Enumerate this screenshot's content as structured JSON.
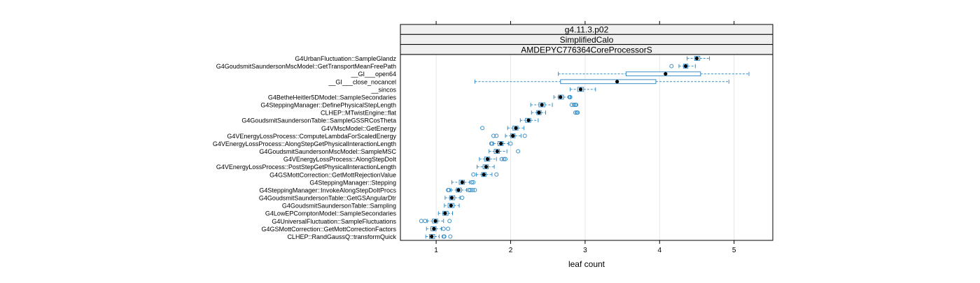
{
  "chart_data": {
    "type": "boxplot",
    "strips": [
      "g4.11.3.p02",
      "SimplifiedCalo",
      "AMDEPYC776364CoreProcessorS"
    ],
    "xlabel": "leaf count",
    "xlim": [
      0.52,
      5.52
    ],
    "xticks": [
      1,
      2,
      3,
      4,
      5
    ],
    "grid": true,
    "colors": {
      "box": "#0080ff",
      "box_stroke": "#3a8fc7",
      "median": "#000000",
      "grid": "#e6e6e6",
      "strip_bg": "#f0f0f0",
      "frame": "#000000"
    },
    "series": [
      {
        "name": "G4UrbanFluctuation::SampleGlandz",
        "min": 4.37,
        "q1": 4.47,
        "median": 4.5,
        "q3": 4.54,
        "max": 4.67,
        "outliers": []
      },
      {
        "name": "G4GoudsmitSaundersonMscModel::GetTransportMeanFreePath",
        "min": 4.26,
        "q1": 4.32,
        "median": 4.35,
        "q3": 4.38,
        "max": 4.48,
        "outliers": [
          4.16
        ]
      },
      {
        "name": "__GI___open64",
        "min": 2.64,
        "q1": 3.55,
        "median": 4.08,
        "q3": 4.55,
        "max": 5.2,
        "outliers": []
      },
      {
        "name": "__GI___close_nocancel",
        "min": 1.52,
        "q1": 2.67,
        "median": 3.43,
        "q3": 3.95,
        "max": 4.93,
        "outliers": []
      },
      {
        "name": "__sincos",
        "min": 2.8,
        "q1": 2.9,
        "median": 2.94,
        "q3": 2.98,
        "max": 3.14,
        "outliers": []
      },
      {
        "name": "G4BetheHeitler5DModel::SampleSecondaries",
        "min": 2.58,
        "q1": 2.64,
        "median": 2.67,
        "q3": 2.71,
        "max": 2.8,
        "outliers": [
          2.79,
          2.8
        ]
      },
      {
        "name": "G4SteppingManager::DefinePhysicalStepLength",
        "min": 2.27,
        "q1": 2.38,
        "median": 2.42,
        "q3": 2.46,
        "max": 2.56,
        "outliers": [
          2.82,
          2.85,
          2.87,
          2.88
        ]
      },
      {
        "name": "CLHEP::MTwistEngine::flat",
        "min": 2.28,
        "q1": 2.35,
        "median": 2.38,
        "q3": 2.41,
        "max": 2.47,
        "outliers": [
          2.87,
          2.89,
          2.9
        ]
      },
      {
        "name": "G4GoudsmitSaundersonTable::SampleGSSRCosTheta",
        "min": 2.13,
        "q1": 2.2,
        "median": 2.24,
        "q3": 2.27,
        "max": 2.37,
        "outliers": []
      },
      {
        "name": "G4VMscModel::GetEnergy",
        "min": 1.96,
        "q1": 2.03,
        "median": 2.07,
        "q3": 2.1,
        "max": 2.18,
        "outliers": [
          1.62
        ]
      },
      {
        "name": "G4VEnergyLossProcess::ComputeLambdaForScaledEnergy",
        "min": 1.93,
        "q1": 2.0,
        "median": 2.03,
        "q3": 2.06,
        "max": 2.14,
        "outliers": [
          1.77,
          1.81,
          2.19
        ]
      },
      {
        "name": "G4VEnergyLossProcess::AlongStepGetPhysicalInteractionLength",
        "min": 1.77,
        "q1": 1.83,
        "median": 1.87,
        "q3": 1.9,
        "max": 1.97,
        "outliers": [
          1.74,
          1.75,
          2.0
        ]
      },
      {
        "name": "G4GoudsmitSaundersonMscModel::SampleMSC",
        "min": 1.71,
        "q1": 1.78,
        "median": 1.82,
        "q3": 1.85,
        "max": 1.95,
        "outliers": [
          2.1
        ]
      },
      {
        "name": "G4VEnergyLossProcess::AlongStepDoIt",
        "min": 1.58,
        "q1": 1.65,
        "median": 1.69,
        "q3": 1.72,
        "max": 1.81,
        "outliers": [
          1.88,
          1.91,
          1.93
        ]
      },
      {
        "name": "G4VEnergyLossProcess::PostStepGetPhysicalInteractionLength",
        "min": 1.55,
        "q1": 1.63,
        "median": 1.67,
        "q3": 1.7,
        "max": 1.78,
        "outliers": []
      },
      {
        "name": "G4GSMottCorrection::GetMottRejectionValue",
        "min": 1.54,
        "q1": 1.61,
        "median": 1.64,
        "q3": 1.67,
        "max": 1.75,
        "outliers": [
          1.5,
          1.81
        ]
      },
      {
        "name": "G4SteppingManager::Stepping",
        "min": 1.21,
        "q1": 1.31,
        "median": 1.35,
        "q3": 1.38,
        "max": 1.45,
        "outliers": [
          1.48,
          1.5
        ]
      },
      {
        "name": "G4SteppingManager::InvokeAlongStepDoItProcs",
        "min": 1.2,
        "q1": 1.27,
        "median": 1.3,
        "q3": 1.34,
        "max": 1.41,
        "outliers": [
          1.16,
          1.17,
          1.44,
          1.46,
          1.49,
          1.52
        ]
      },
      {
        "name": "G4GoudsmitSaundersonTable::GetGSAngularDtr",
        "min": 1.12,
        "q1": 1.18,
        "median": 1.21,
        "q3": 1.25,
        "max": 1.32,
        "outliers": [
          1.35
        ]
      },
      {
        "name": "G4GoudsmitSaundersonTable::Sampling",
        "min": 1.11,
        "q1": 1.16,
        "median": 1.2,
        "q3": 1.24,
        "max": 1.31,
        "outliers": []
      },
      {
        "name": "G4LowEPComptonModel::SampleSecondaries",
        "min": 1.03,
        "q1": 1.09,
        "median": 1.12,
        "q3": 1.16,
        "max": 1.22,
        "outliers": []
      },
      {
        "name": "G4UniversalFluctuation::SampleFluctuations",
        "min": 0.88,
        "q1": 0.95,
        "median": 0.99,
        "q3": 1.02,
        "max": 1.1,
        "outliers": [
          0.8,
          0.85,
          1.18
        ]
      },
      {
        "name": "G4GSMottCorrection::GetMottCorrectionFactors",
        "min": 0.87,
        "q1": 0.93,
        "median": 0.97,
        "q3": 1.0,
        "max": 1.07,
        "outliers": [
          1.1,
          1.16
        ]
      },
      {
        "name": "CLHEP::RandGaussQ::transformQuick",
        "min": 0.86,
        "q1": 0.91,
        "median": 0.94,
        "q3": 0.98,
        "max": 1.04,
        "outliers": [
          1.1,
          1.11,
          1.19
        ]
      }
    ]
  }
}
